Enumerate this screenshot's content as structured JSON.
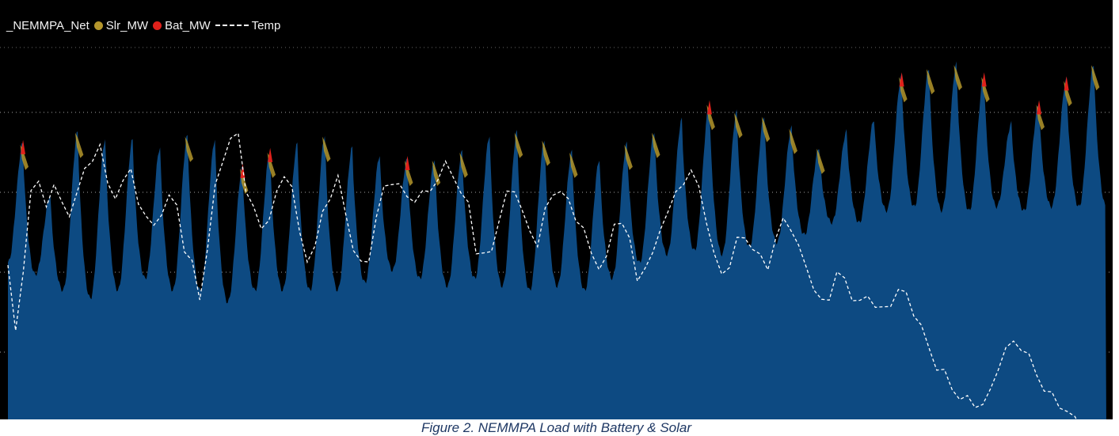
{
  "caption": "Figure 2. NEMMPA Load with Battery & Solar",
  "colors": {
    "background": "#000000",
    "net_area": "#0d4a82",
    "solar": "#b4962c",
    "battery": "#e0211b",
    "temp_line": "#ffffff",
    "gridline": "#cfcfcf"
  },
  "chart_data": {
    "type": "area",
    "title": "",
    "grid": "horizontal dotted",
    "legend_position": "top-left",
    "legend": [
      {
        "label": "_NEMMPA_Net",
        "marker": "area",
        "color": "#0d4a82"
      },
      {
        "label": "Slr_MW",
        "marker": "dot",
        "color": "#b4962c"
      },
      {
        "label": "Bat_MW",
        "marker": "dot",
        "color": "#e0211b"
      },
      {
        "label": "Temp",
        "marker": "dashed-line",
        "color": "#ffffff"
      }
    ],
    "y_scale_note": "relative 0-100 (no printed axis values)",
    "daily_peaks": [
      72,
      59,
      75,
      73,
      73,
      71,
      74,
      73,
      66,
      70,
      72,
      74,
      71,
      69,
      68,
      68,
      70,
      74,
      75,
      73,
      70,
      68,
      72,
      75,
      78,
      82,
      80,
      79,
      76,
      71,
      75,
      78,
      89,
      91,
      92,
      89,
      77,
      82,
      88,
      92
    ],
    "daily_troughs": [
      42,
      39,
      35,
      33,
      35,
      38,
      35,
      35,
      32,
      35,
      35,
      35,
      35,
      37,
      40,
      38,
      36,
      38,
      36,
      35,
      36,
      35,
      38,
      42,
      44,
      45,
      44,
      46,
      47,
      49,
      52,
      52,
      55,
      56,
      55,
      55,
      56,
      55,
      56,
      56
    ],
    "solar_days": [
      0,
      2,
      6,
      8,
      9,
      11,
      14,
      15,
      16,
      18,
      19,
      20,
      22,
      23,
      25,
      26,
      27,
      28,
      29,
      32,
      33,
      34,
      35,
      37,
      38,
      39
    ],
    "battery_days": [
      0,
      8,
      9,
      14,
      25,
      32,
      35,
      37,
      38
    ],
    "temp": [
      38,
      22,
      35,
      58,
      60,
      52,
      60,
      54,
      50,
      58,
      62,
      65,
      70,
      58,
      56,
      60,
      62,
      55,
      50,
      48,
      52,
      55,
      54,
      42,
      38,
      30,
      42,
      58,
      66,
      70,
      72,
      58,
      52,
      48,
      50,
      56,
      62,
      58,
      46,
      40,
      42,
      52,
      56,
      60,
      52,
      42,
      38,
      40,
      50,
      58,
      60,
      58,
      56,
      55,
      56,
      58,
      60,
      64,
      62,
      56,
      54,
      42,
      40,
      42,
      50,
      56,
      58,
      52,
      46,
      44,
      52,
      56,
      58,
      54,
      50,
      48,
      40,
      38,
      40,
      48,
      50,
      44,
      34,
      38,
      40,
      48,
      52,
      56,
      60,
      62,
      58,
      50,
      40,
      36,
      38,
      44,
      46,
      42,
      40,
      38,
      44,
      50,
      48,
      42,
      38,
      32,
      28,
      30,
      36,
      34,
      30,
      28,
      30,
      28,
      26,
      28,
      32,
      30,
      26,
      22,
      16,
      12,
      10,
      6,
      4,
      3,
      2,
      2,
      5,
      12,
      16,
      18,
      17,
      14,
      10,
      6,
      4,
      2,
      0,
      -2,
      -4
    ]
  }
}
